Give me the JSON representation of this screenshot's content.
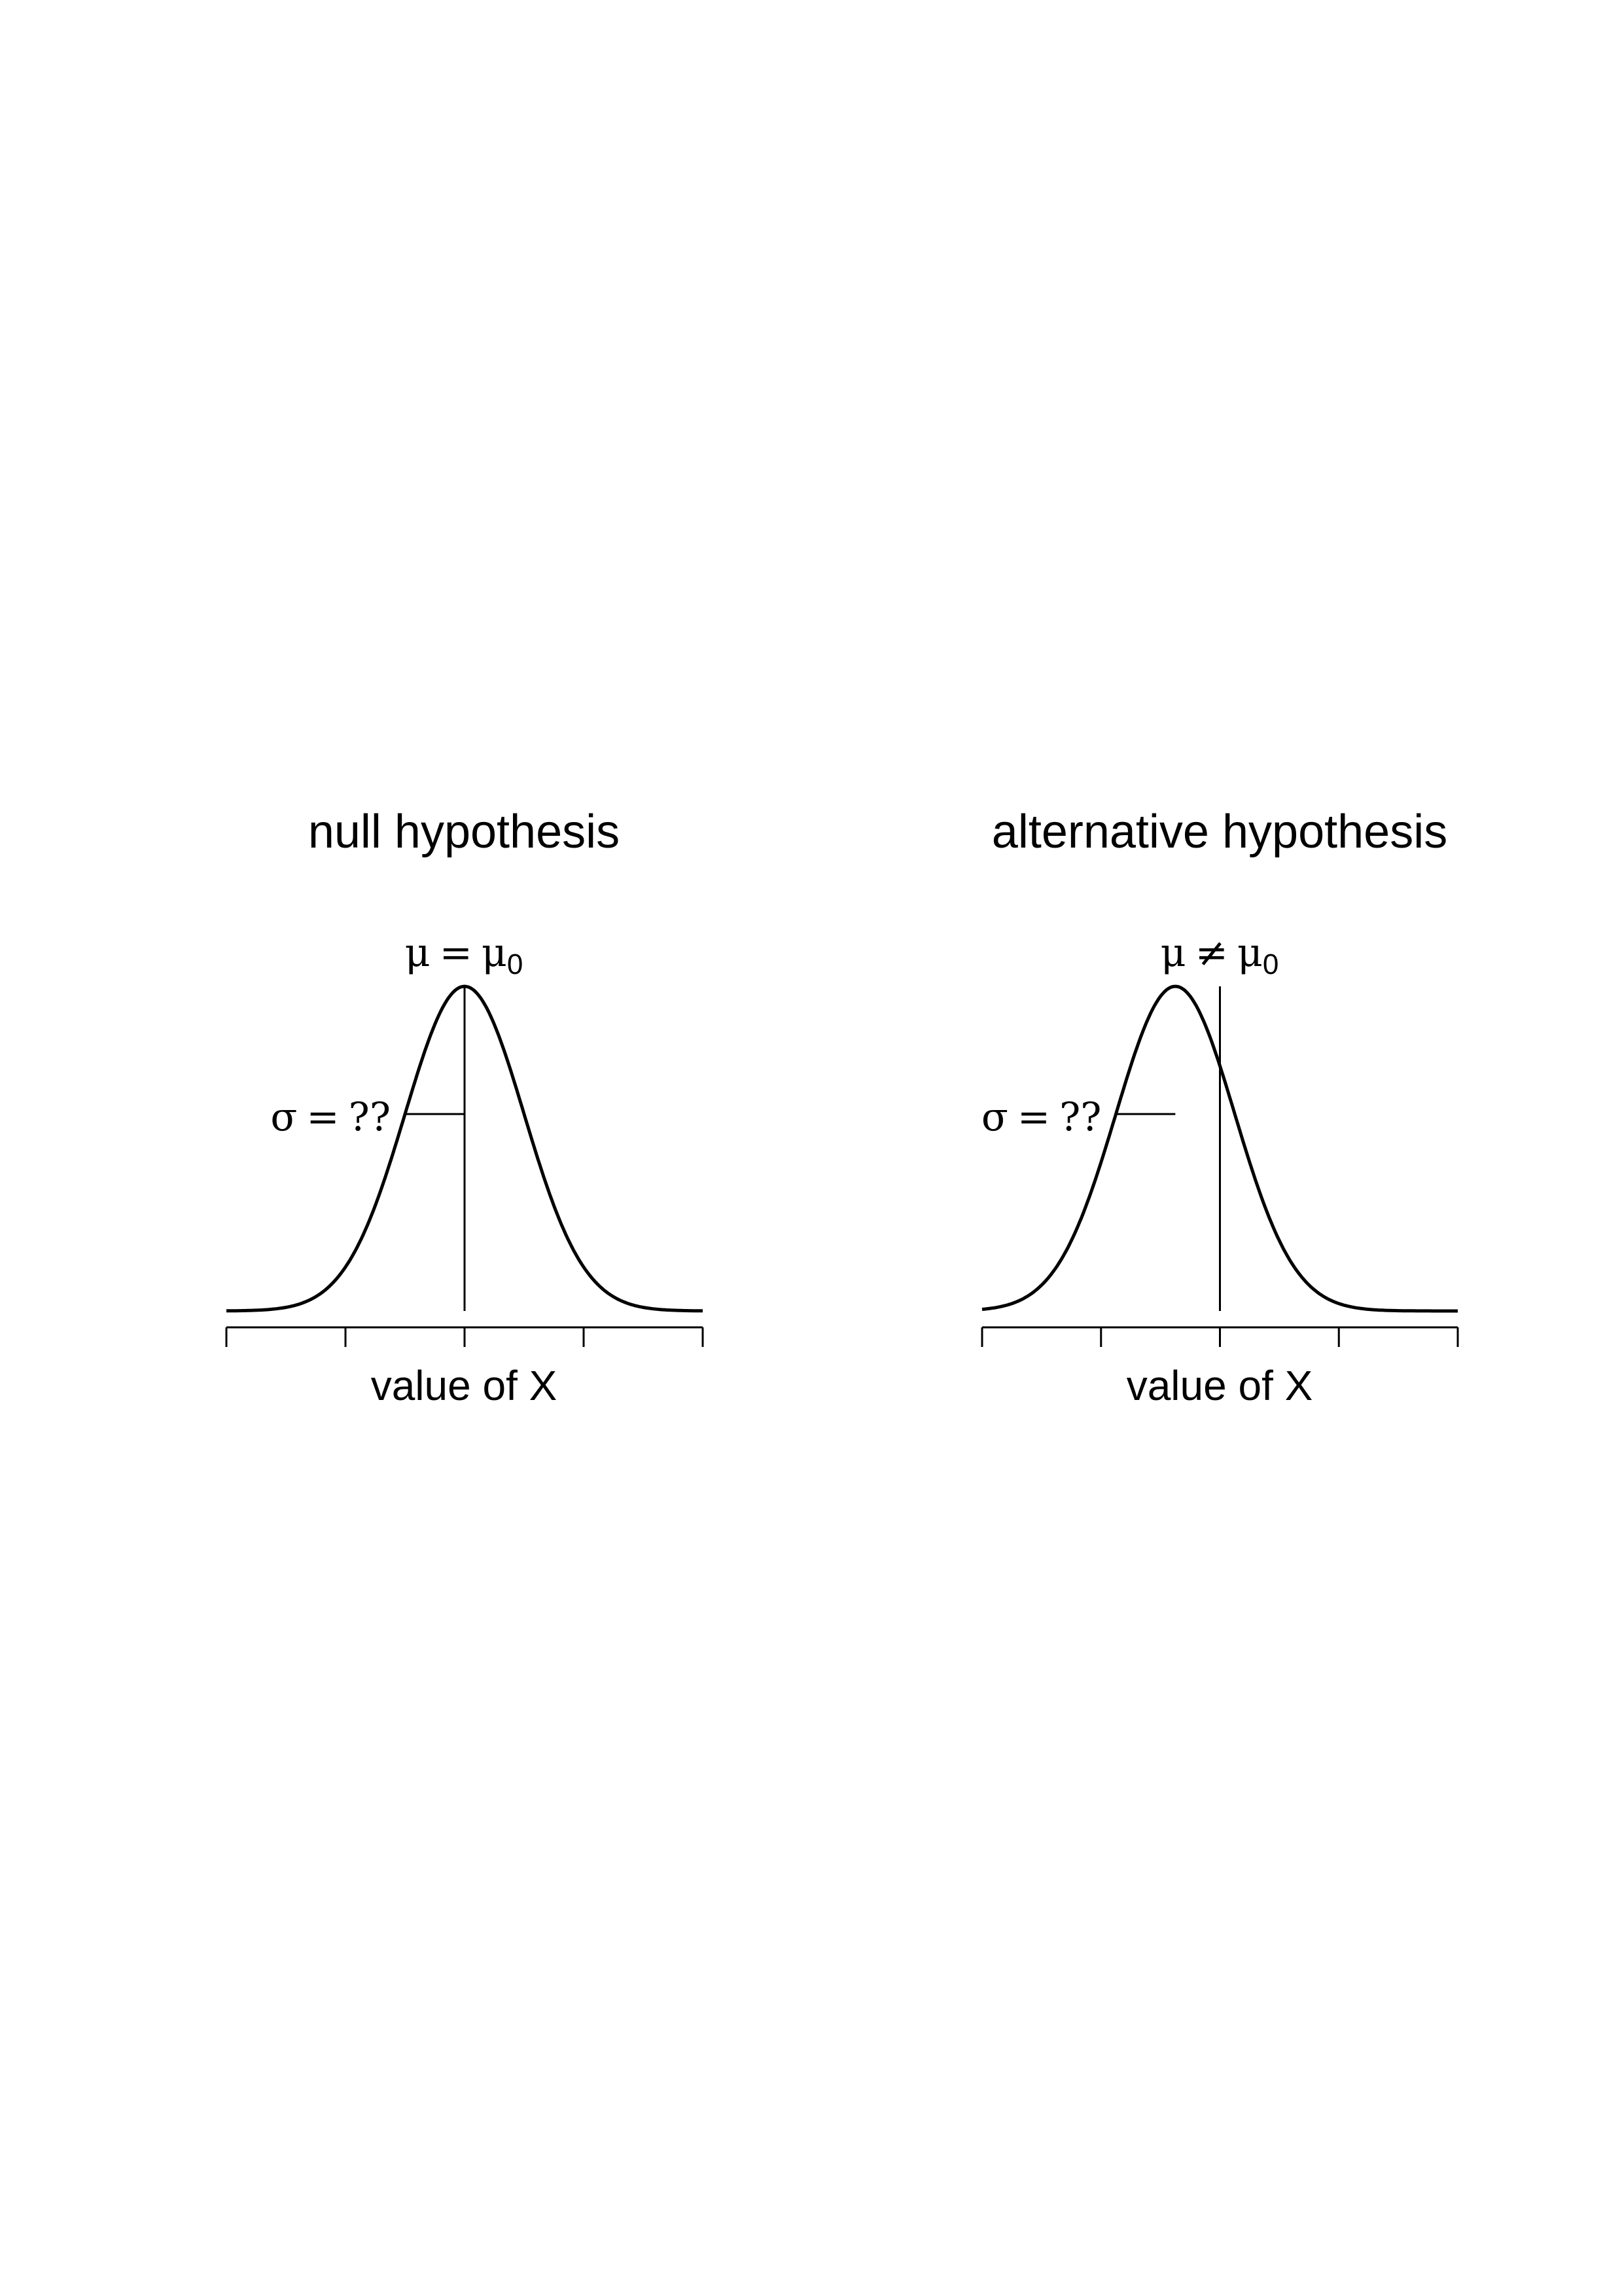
{
  "chart_data": [
    {
      "type": "line",
      "title": "null hypothesis",
      "xlabel": "value of X",
      "ylabel": "",
      "mean_annotation": {
        "symbol": "μ",
        "relation": "=",
        "reference": "μ",
        "reference_subscript": "0"
      },
      "sigma_annotation": {
        "symbol": "σ",
        "relation": "=",
        "value": "??"
      },
      "distribution": "normal",
      "mean": 0,
      "sd": 1,
      "reference_line_x": 0,
      "xlim": [
        -4,
        4
      ],
      "x_ticks": [
        -4,
        -2,
        0,
        2,
        4
      ],
      "show_tick_labels": false,
      "grid": false,
      "legend": "none"
    },
    {
      "type": "line",
      "title": "alternative hypothesis",
      "xlabel": "value of X",
      "ylabel": "",
      "mean_annotation": {
        "symbol": "μ",
        "relation": "≠",
        "reference": "μ",
        "reference_subscript": "0"
      },
      "sigma_annotation": {
        "symbol": "σ",
        "relation": "=",
        "value": "??"
      },
      "distribution": "normal",
      "mean": -0.75,
      "sd": 1,
      "reference_line_x": 0,
      "xlim": [
        -4,
        4
      ],
      "x_ticks": [
        -4,
        -2,
        0,
        2,
        4
      ],
      "show_tick_labels": false,
      "grid": false,
      "legend": "none"
    }
  ]
}
